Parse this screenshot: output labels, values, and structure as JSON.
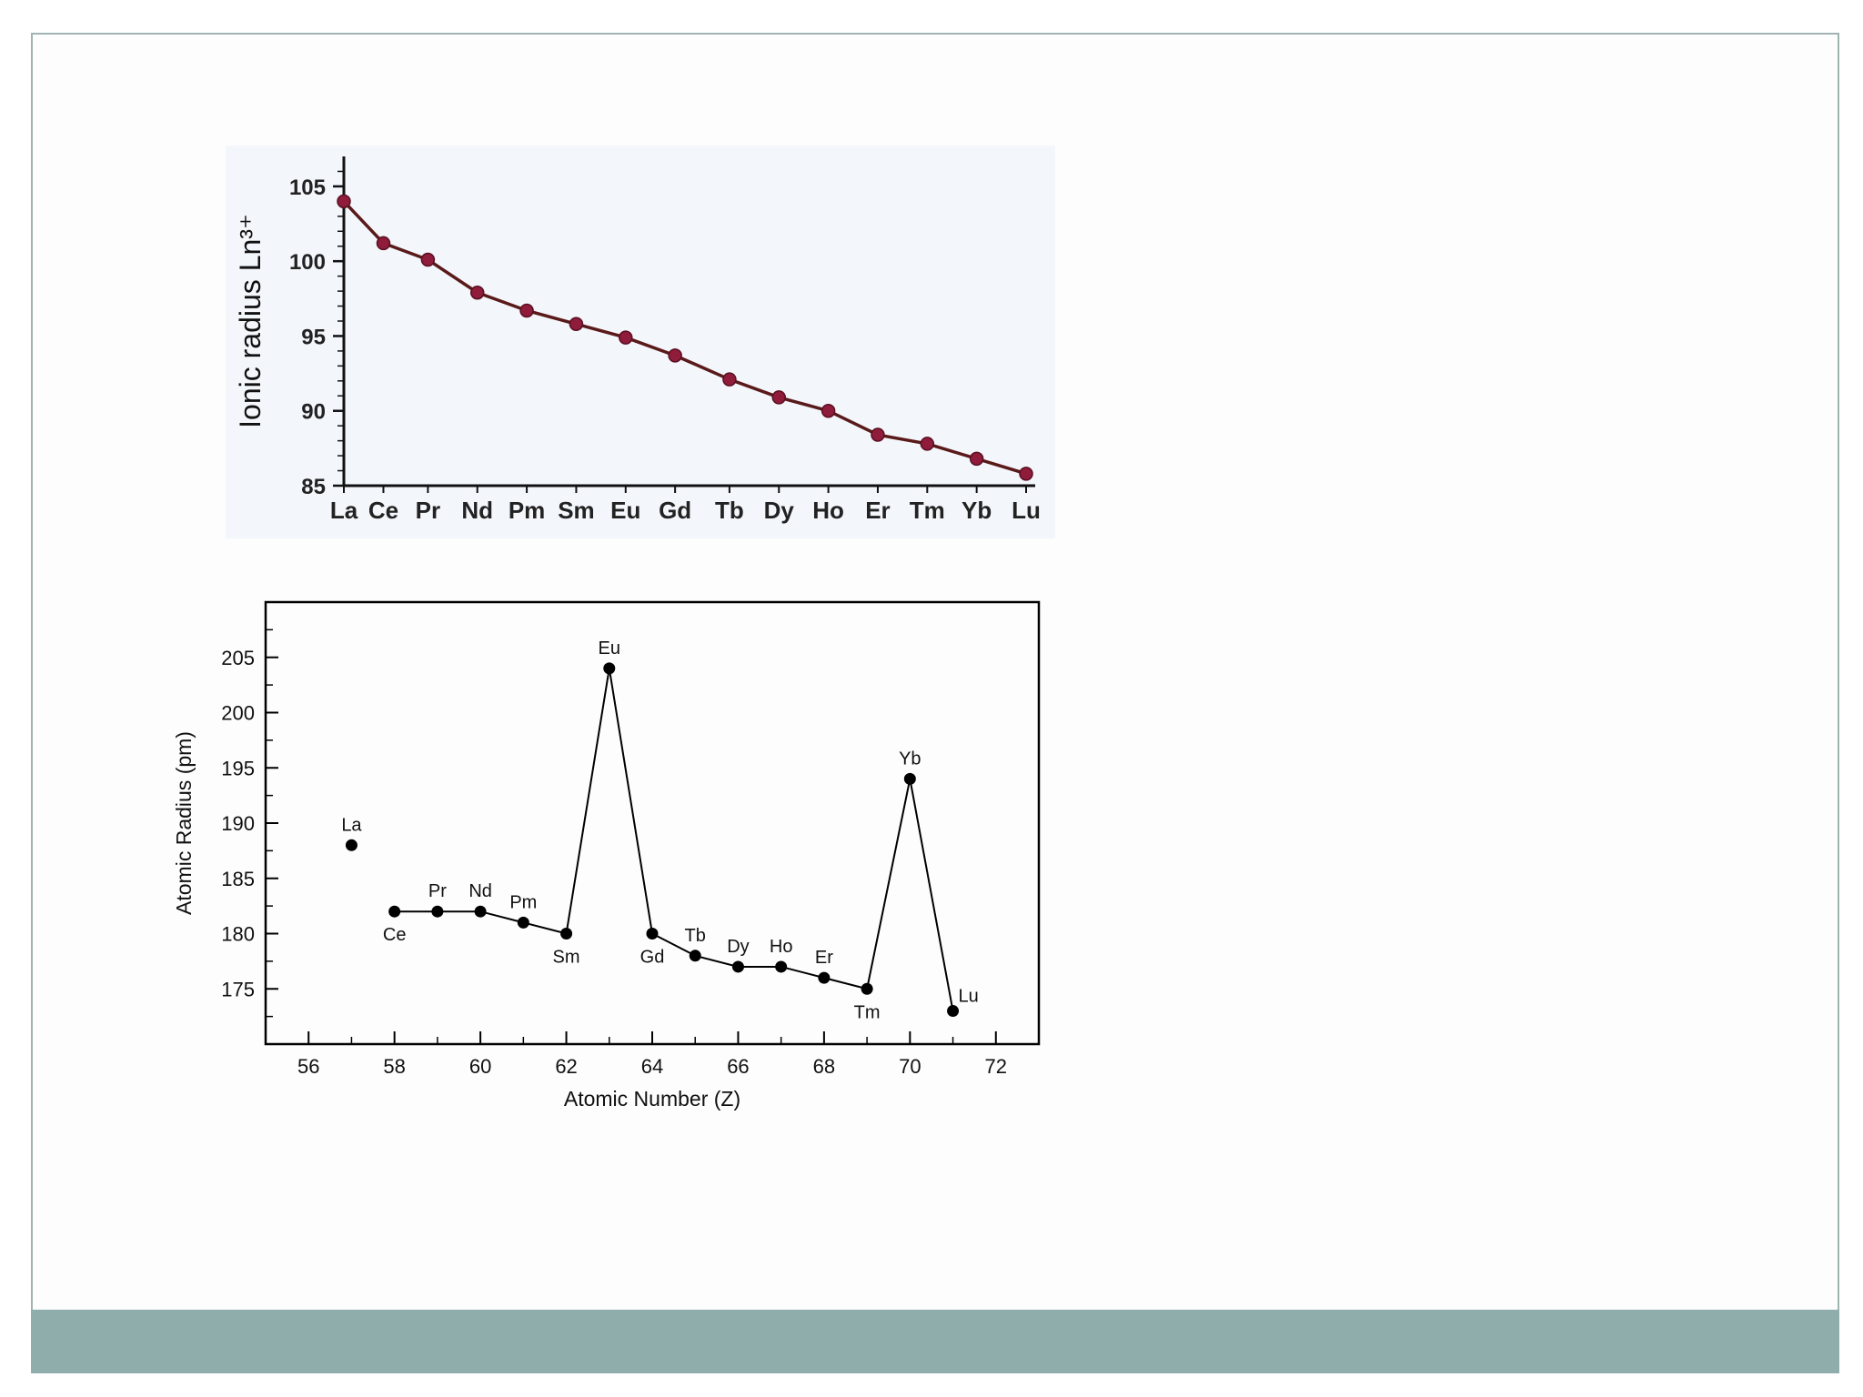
{
  "colors": {
    "frame": "#9fb3b0",
    "footer_bar": "#8fadab",
    "chart1_panel": "#f3f6fb",
    "chart1_line": "#5a1a1a",
    "chart1_marker": "#8e1c3a",
    "chart2_line": "#000000"
  },
  "chart_data": [
    {
      "type": "line",
      "ylabel": "Ionic radius Ln³⁺",
      "xlabel": "",
      "ylim": [
        85,
        107
      ],
      "yticks": [
        "105",
        "100",
        "95",
        "90",
        "85"
      ],
      "categories": [
        "La",
        "Ce",
        "Pr",
        "Nd",
        "Pm",
        "Sm",
        "Eu",
        "Gd",
        "Tb",
        "Dy",
        "Ho",
        "Er",
        "Tm",
        "Yb",
        "Lu"
      ],
      "x_positions": [
        1,
        1.8,
        2.7,
        3.7,
        4.7,
        5.7,
        6.7,
        7.7,
        8.8,
        9.8,
        10.8,
        11.8,
        12.8,
        13.8,
        14.8
      ],
      "series": [
        {
          "values": [
            104.0,
            101.2,
            100.1,
            97.9,
            96.7,
            95.8,
            94.9,
            93.7,
            92.1,
            90.9,
            90.0,
            88.4,
            87.8,
            86.8,
            85.8
          ]
        }
      ],
      "grid": false,
      "legend": "none"
    },
    {
      "type": "line",
      "xlabel": "Atomic Number (Z)",
      "ylabel": "Atomic Radius (pm)",
      "xlim": [
        55,
        73
      ],
      "ylim": [
        170,
        210
      ],
      "xticks": [
        "56",
        "58",
        "60",
        "62",
        "64",
        "66",
        "68",
        "70",
        "72"
      ],
      "yticks": [
        "175",
        "180",
        "185",
        "190",
        "195",
        "200",
        "205"
      ],
      "x": [
        57,
        58,
        59,
        60,
        61,
        62,
        63,
        64,
        65,
        66,
        67,
        68,
        69,
        70,
        71
      ],
      "series": [
        {
          "values": [
            188,
            182,
            182,
            182,
            181,
            180,
            204,
            180,
            178,
            177,
            177,
            176,
            175,
            194,
            173
          ]
        }
      ],
      "point_labels": [
        "La",
        "Ce",
        "Pr",
        "Nd",
        "Pm",
        "Sm",
        "Eu",
        "Gd",
        "Tb",
        "Dy",
        "Ho",
        "Er",
        "Tm",
        "Yb",
        "Lu"
      ],
      "label_position": [
        "above",
        "below",
        "above",
        "above",
        "above",
        "below",
        "above",
        "below",
        "above",
        "above",
        "above",
        "above",
        "below",
        "above",
        "right"
      ],
      "connected_from_index": 1,
      "grid": false,
      "legend": "none"
    }
  ]
}
